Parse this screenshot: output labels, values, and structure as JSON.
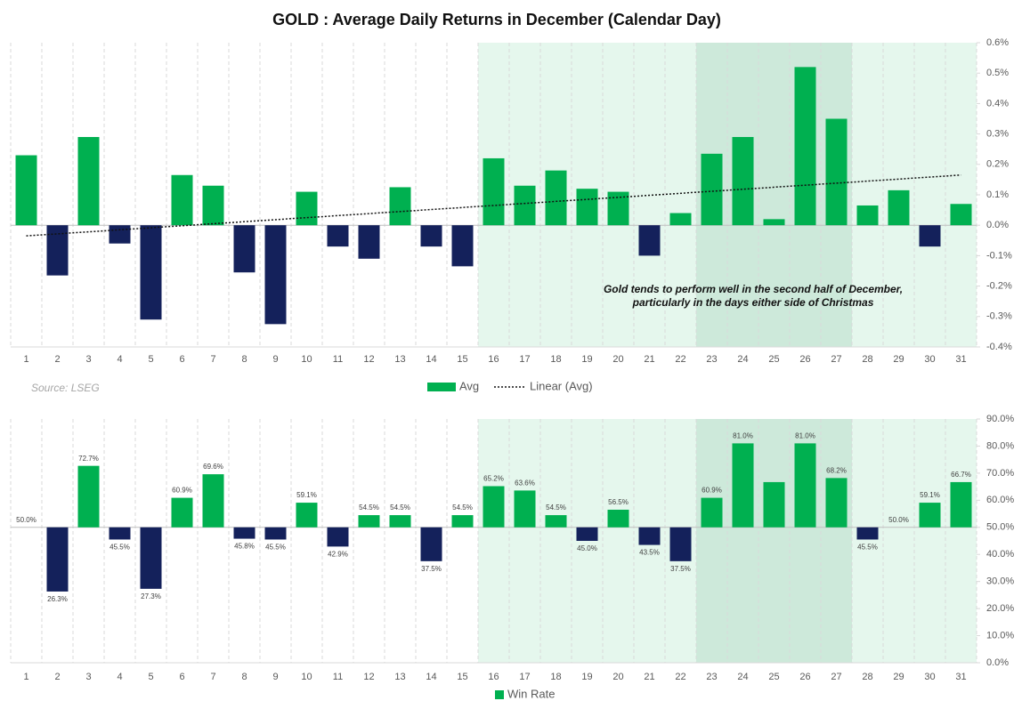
{
  "chart_data": [
    {
      "type": "bar",
      "title": "GOLD : Average Daily Returns in December (Calendar Day)",
      "categories": [
        "1",
        "2",
        "3",
        "4",
        "5",
        "6",
        "7",
        "8",
        "9",
        "10",
        "11",
        "12",
        "13",
        "14",
        "15",
        "16",
        "17",
        "18",
        "19",
        "20",
        "21",
        "22",
        "23",
        "24",
        "25",
        "26",
        "27",
        "28",
        "29",
        "30",
        "31"
      ],
      "series": [
        {
          "name": "Avg",
          "color": "#00b050",
          "negative_color": "#14215b",
          "values": [
            0.23,
            -0.165,
            0.29,
            -0.06,
            -0.31,
            0.165,
            0.13,
            -0.155,
            -0.325,
            0.11,
            -0.07,
            -0.11,
            0.125,
            -0.07,
            -0.135,
            0.22,
            0.13,
            0.18,
            0.12,
            0.11,
            -0.1,
            0.04,
            0.235,
            0.29,
            0.02,
            0.52,
            0.35,
            0.065,
            0.115,
            -0.07,
            0.07
          ]
        }
      ],
      "trend": {
        "name": "Linear (Avg)",
        "x": [
          1,
          31
        ],
        "values": [
          -0.035,
          0.165
        ]
      },
      "highlights": [
        {
          "from": 16,
          "to": 31
        },
        {
          "from": 23,
          "to": 27
        }
      ],
      "ylim": [
        -0.4,
        0.6
      ],
      "yticks": [
        {
          "value": -0.4,
          "label": "-0.4%"
        },
        {
          "value": -0.3,
          "label": "-0.3%"
        },
        {
          "value": -0.2,
          "label": "-0.2%"
        },
        {
          "value": -0.1,
          "label": "-0.1%"
        },
        {
          "value": 0,
          "label": "0.0%"
        },
        {
          "value": 0.1,
          "label": "0.1%"
        },
        {
          "value": 0.2,
          "label": "0.2%"
        },
        {
          "value": 0.3,
          "label": "0.3%"
        },
        {
          "value": 0.4,
          "label": "0.4%"
        },
        {
          "value": 0.5,
          "label": "0.5%"
        },
        {
          "value": 0.6,
          "label": "0.6%"
        }
      ],
      "annotation": [
        "Gold tends to perform well in the second half of December,",
        "particularly in the days either side of Christmas"
      ],
      "source": "Source: LSEG"
    },
    {
      "type": "bar",
      "categories": [
        "1",
        "2",
        "3",
        "4",
        "5",
        "6",
        "7",
        "8",
        "9",
        "10",
        "11",
        "12",
        "13",
        "14",
        "15",
        "16",
        "17",
        "18",
        "19",
        "20",
        "21",
        "22",
        "23",
        "24",
        "25",
        "26",
        "27",
        "28",
        "29",
        "30",
        "31"
      ],
      "series": [
        {
          "name": "Win Rate",
          "color": "#00b050",
          "negative_color": "#14215b",
          "values": [
            50.0,
            26.3,
            72.7,
            45.5,
            27.3,
            60.9,
            69.6,
            45.8,
            45.5,
            59.1,
            42.9,
            54.5,
            54.5,
            37.5,
            54.5,
            65.2,
            63.6,
            54.5,
            45.0,
            56.5,
            43.5,
            37.5,
            60.9,
            81.0,
            66.7,
            81.0,
            68.2,
            45.5,
            50.0,
            59.1,
            66.7
          ],
          "value_labels": [
            "50.0%",
            "26.3%",
            "72.7%",
            "45.5%",
            "27.3%",
            "60.9%",
            "69.6%",
            "45.8%",
            "45.5%",
            "59.1%",
            "42.9%",
            "54.5%",
            "54.5%",
            "37.5%",
            "54.5%",
            "65.2%",
            "63.6%",
            "54.5%",
            "45.0%",
            "56.5%",
            "43.5%",
            "37.5%",
            "60.9%",
            "81.0%",
            null,
            "81.0%",
            "68.2%",
            "45.5%",
            "50.0%",
            "59.1%",
            "66.7%"
          ]
        }
      ],
      "baseline": 50,
      "highlights": [
        {
          "from": 16,
          "to": 31
        },
        {
          "from": 23,
          "to": 27
        }
      ],
      "ylim": [
        0,
        90
      ],
      "yticks": [
        {
          "value": 0,
          "label": "0.0%"
        },
        {
          "value": 10,
          "label": "10.0%"
        },
        {
          "value": 20,
          "label": "20.0%"
        },
        {
          "value": 30,
          "label": "30.0%"
        },
        {
          "value": 40,
          "label": "40.0%"
        },
        {
          "value": 50,
          "label": "50.0%"
        },
        {
          "value": 60,
          "label": "60.0%"
        },
        {
          "value": 70,
          "label": "70.0%"
        },
        {
          "value": 80,
          "label": "80.0%"
        },
        {
          "value": 90,
          "label": "90.0%"
        }
      ]
    }
  ]
}
